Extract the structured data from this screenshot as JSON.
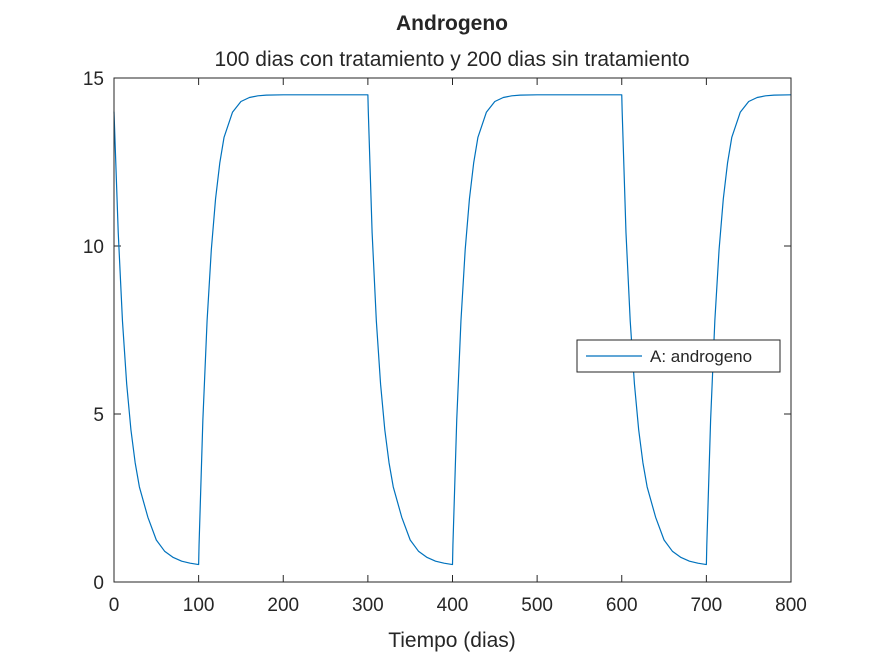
{
  "chart_data": {
    "type": "line",
    "title": "Androgeno",
    "subtitle": "100 dias con tratamiento y 200 dias sin tratamiento",
    "xlabel": "Tiempo (dias)",
    "ylabel": "",
    "xlim": [
      0,
      800
    ],
    "ylim": [
      0,
      15
    ],
    "xticks": [
      0,
      100,
      200,
      300,
      400,
      500,
      600,
      700,
      800
    ],
    "yticks": [
      0,
      5,
      10,
      15
    ],
    "grid": false,
    "legend_position": "right",
    "series": [
      {
        "name": "A: androgeno",
        "color": "#0072BD",
        "x": [
          0,
          5,
          10,
          15,
          20,
          25,
          30,
          40,
          50,
          60,
          70,
          80,
          90,
          100,
          100.5,
          105,
          110,
          115,
          120,
          125,
          130,
          140,
          150,
          160,
          170,
          180,
          200,
          250,
          300,
          300.5,
          305,
          310,
          315,
          320,
          325,
          330,
          340,
          350,
          360,
          370,
          380,
          390,
          400,
          400.5,
          405,
          410,
          415,
          420,
          425,
          430,
          440,
          450,
          460,
          470,
          480,
          500,
          550,
          600,
          600.5,
          605,
          610,
          615,
          620,
          625,
          630,
          640,
          650,
          660,
          670,
          680,
          690,
          700,
          700.5,
          705,
          710,
          715,
          720,
          725,
          730,
          740,
          750,
          760,
          770,
          780,
          800
        ],
        "y": [
          14.0,
          10.4,
          7.77,
          5.89,
          4.53,
          3.55,
          2.83,
          1.93,
          1.25,
          0.91,
          0.73,
          0.62,
          0.56,
          0.52,
          1.1,
          4.82,
          7.78,
          9.89,
          11.4,
          12.47,
          13.23,
          13.98,
          14.3,
          14.42,
          14.47,
          14.49,
          14.5,
          14.5,
          14.5,
          14.0,
          10.4,
          7.77,
          5.89,
          4.53,
          3.55,
          2.83,
          1.93,
          1.25,
          0.91,
          0.73,
          0.62,
          0.56,
          0.52,
          1.1,
          4.82,
          7.78,
          9.89,
          11.4,
          12.47,
          13.23,
          13.98,
          14.3,
          14.42,
          14.47,
          14.49,
          14.5,
          14.5,
          14.5,
          14.0,
          10.4,
          7.77,
          5.89,
          4.53,
          3.55,
          2.83,
          1.93,
          1.25,
          0.91,
          0.73,
          0.62,
          0.56,
          0.52,
          1.1,
          4.82,
          7.78,
          9.89,
          11.4,
          12.47,
          13.23,
          13.98,
          14.3,
          14.42,
          14.47,
          14.49,
          14.5
        ]
      }
    ]
  }
}
